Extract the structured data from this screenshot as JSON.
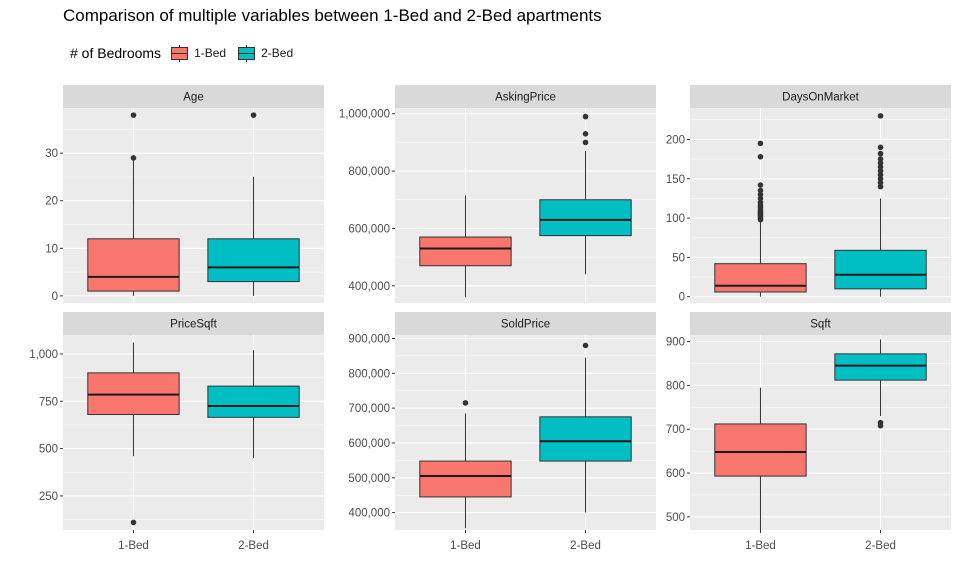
{
  "chart_data": {
    "type": "boxplot",
    "title": "Comparison of multiple variables between 1-Bed and 2-Bed apartments",
    "legend": {
      "title": "# of Bedrooms",
      "placement": "top-left",
      "items": [
        {
          "label": "1-Bed",
          "color": "#F8766D"
        },
        {
          "label": "2-Bed",
          "color": "#00BFC4"
        }
      ]
    },
    "categories": [
      "1-Bed",
      "2-Bed"
    ],
    "panels": [
      {
        "name": "Age",
        "ylim": [
          -1.5,
          39.5
        ],
        "yticks": [
          0,
          10,
          20,
          30
        ],
        "ytick_labels": [
          "0",
          "10",
          "20",
          "30"
        ],
        "boxes": [
          {
            "category": "1-Bed",
            "min": 0,
            "q1": 1,
            "median": 4,
            "q3": 12,
            "max": 28.5,
            "outliers": [
              29,
              38
            ]
          },
          {
            "category": "2-Bed",
            "min": 0,
            "q1": 3,
            "median": 6,
            "q3": 12,
            "max": 25,
            "outliers": [
              38
            ]
          }
        ]
      },
      {
        "name": "AskingPrice",
        "ylim": [
          340000,
          1020000
        ],
        "yticks": [
          400000,
          600000,
          800000,
          1000000
        ],
        "ytick_labels": [
          "400,000",
          "600,000",
          "800,000",
          "1,000,000"
        ],
        "boxes": [
          {
            "category": "1-Bed",
            "min": 360000,
            "q1": 470000,
            "median": 530000,
            "q3": 570000,
            "max": 715000,
            "outliers": []
          },
          {
            "category": "2-Bed",
            "min": 440000,
            "q1": 575000,
            "median": 630000,
            "q3": 700000,
            "max": 870000,
            "outliers": [
              900000,
              930000,
              990000
            ]
          }
        ]
      },
      {
        "name": "DaysOnMarket",
        "ylim": [
          -8,
          240
        ],
        "yticks": [
          0,
          50,
          100,
          150,
          200
        ],
        "ytick_labels": [
          "0",
          "50",
          "100",
          "150",
          "200"
        ],
        "boxes": [
          {
            "category": "1-Bed",
            "min": 0,
            "q1": 6,
            "median": 14,
            "q3": 42,
            "max": 95,
            "outliers": [
              98,
              100,
              102,
              104,
              106,
              108,
              110,
              113,
              116,
              120,
              125,
              130,
              135,
              142,
              178,
              195
            ]
          },
          {
            "category": "2-Bed",
            "min": 0,
            "q1": 10,
            "median": 28,
            "q3": 59,
            "max": 125,
            "outliers": [
              140,
              145,
              150,
              155,
              160,
              165,
              170,
              175,
              182,
              190,
              230
            ]
          }
        ]
      },
      {
        "name": "PriceSqft",
        "ylim": [
          70,
          1100
        ],
        "yticks": [
          250,
          500,
          750,
          1000
        ],
        "ytick_labels": [
          "250",
          "500",
          "750",
          "1,000"
        ],
        "boxes": [
          {
            "category": "1-Bed",
            "min": 460,
            "q1": 680,
            "median": 785,
            "q3": 900,
            "max": 1060,
            "outliers": [
              110
            ]
          },
          {
            "category": "2-Bed",
            "min": 450,
            "q1": 665,
            "median": 725,
            "q3": 830,
            "max": 1020,
            "outliers": []
          }
        ]
      },
      {
        "name": "SoldPrice",
        "ylim": [
          350000,
          910000
        ],
        "yticks": [
          400000,
          500000,
          600000,
          700000,
          800000,
          900000
        ],
        "ytick_labels": [
          "400,000",
          "500,000",
          "600,000",
          "700,000",
          "800,000",
          "900,000"
        ],
        "boxes": [
          {
            "category": "1-Bed",
            "min": 355000,
            "q1": 445000,
            "median": 505000,
            "q3": 548000,
            "max": 685000,
            "outliers": [
              715000
            ]
          },
          {
            "category": "2-Bed",
            "min": 400000,
            "q1": 548000,
            "median": 605000,
            "q3": 675000,
            "max": 845000,
            "outliers": [
              880000
            ]
          }
        ]
      },
      {
        "name": "Sqft",
        "ylim": [
          470,
          915
        ],
        "yticks": [
          500,
          600,
          700,
          800,
          900
        ],
        "ytick_labels": [
          "500",
          "600",
          "700",
          "800",
          "900"
        ],
        "boxes": [
          {
            "category": "1-Bed",
            "min": 470,
            "q1": 593,
            "median": 648,
            "q3": 712,
            "max": 795,
            "outliers": []
          },
          {
            "category": "2-Bed",
            "min": 730,
            "q1": 812,
            "median": 845,
            "q3": 872,
            "max": 905,
            "outliers": [
              708,
              715
            ]
          }
        ]
      }
    ]
  }
}
